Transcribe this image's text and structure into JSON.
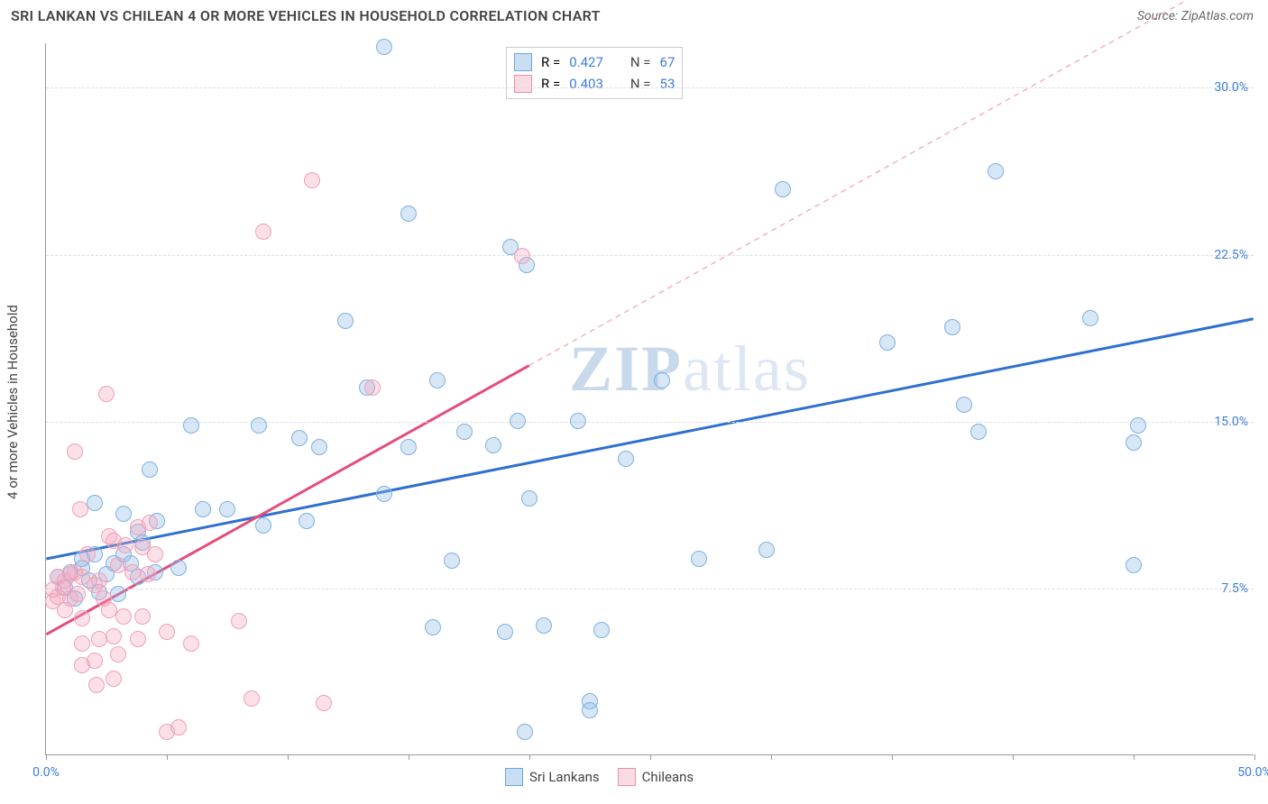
{
  "title": "SRI LANKAN VS CHILEAN 4 OR MORE VEHICLES IN HOUSEHOLD CORRELATION CHART",
  "source_label": "Source: ZipAtlas.com",
  "y_axis_title": "4 or more Vehicles in Household",
  "chart": {
    "type": "scatter",
    "xlim": [
      0,
      50
    ],
    "ylim": [
      0,
      32
    ],
    "x_ticks": [
      0,
      5,
      10,
      15,
      20,
      25,
      30,
      35,
      40,
      45,
      50
    ],
    "x_tick_labels": {
      "0": "0.0%",
      "50": "50.0%"
    },
    "y_gridlines": [
      7.5,
      15.0,
      22.5,
      30.0
    ],
    "y_tick_labels": [
      "7.5%",
      "15.0%",
      "22.5%",
      "30.0%"
    ],
    "background_color": "#ffffff",
    "grid_color": "#dddddd",
    "axis_color": "#999999",
    "marker_radius": 9,
    "marker_border_width": 1.5,
    "series": [
      {
        "name": "Sri Lankans",
        "fill": "rgba(140,185,230,0.35)",
        "stroke": "#7fb0e0",
        "trend": {
          "x1": 0,
          "y1": 8.8,
          "x2": 50,
          "y2": 19.6,
          "color": "#2f6fd0",
          "width": 3,
          "dash": "none",
          "extrapolate": false
        },
        "points": [
          [
            0.5,
            8.0
          ],
          [
            0.8,
            7.5
          ],
          [
            1.0,
            8.2
          ],
          [
            1.2,
            7.0
          ],
          [
            1.5,
            8.4
          ],
          [
            1.5,
            8.8
          ],
          [
            1.8,
            7.8
          ],
          [
            2.0,
            11.3
          ],
          [
            2.0,
            9.0
          ],
          [
            2.2,
            7.3
          ],
          [
            2.5,
            8.1
          ],
          [
            2.8,
            8.6
          ],
          [
            3.0,
            7.2
          ],
          [
            3.2,
            10.8
          ],
          [
            3.2,
            9.0
          ],
          [
            3.5,
            8.6
          ],
          [
            3.8,
            10.0
          ],
          [
            3.8,
            8.0
          ],
          [
            4.0,
            9.5
          ],
          [
            4.3,
            12.8
          ],
          [
            4.6,
            10.5
          ],
          [
            4.5,
            8.2
          ],
          [
            5.5,
            8.4
          ],
          [
            6.0,
            14.8
          ],
          [
            6.5,
            11.0
          ],
          [
            7.5,
            11.0
          ],
          [
            8.8,
            14.8
          ],
          [
            9.0,
            10.3
          ],
          [
            10.5,
            14.2
          ],
          [
            10.8,
            10.5
          ],
          [
            11.3,
            13.8
          ],
          [
            12.4,
            19.5
          ],
          [
            13.3,
            16.5
          ],
          [
            14.0,
            11.7
          ],
          [
            14.0,
            31.8
          ],
          [
            15.0,
            13.8
          ],
          [
            15.0,
            24.3
          ],
          [
            16.2,
            16.8
          ],
          [
            16.0,
            5.7
          ],
          [
            16.8,
            8.7
          ],
          [
            17.3,
            14.5
          ],
          [
            18.5,
            13.9
          ],
          [
            19.0,
            5.5
          ],
          [
            19.2,
            22.8
          ],
          [
            19.5,
            15.0
          ],
          [
            19.9,
            22.0
          ],
          [
            19.8,
            1.0
          ],
          [
            20.0,
            11.5
          ],
          [
            20.6,
            5.8
          ],
          [
            22.0,
            15.0
          ],
          [
            22.5,
            2.4
          ],
          [
            22.5,
            2.0
          ],
          [
            23.0,
            5.6
          ],
          [
            24.0,
            13.3
          ],
          [
            25.5,
            16.8
          ],
          [
            27.0,
            8.8
          ],
          [
            29.8,
            9.2
          ],
          [
            30.5,
            25.4
          ],
          [
            34.8,
            18.5
          ],
          [
            37.5,
            19.2
          ],
          [
            38.0,
            15.7
          ],
          [
            38.6,
            14.5
          ],
          [
            39.3,
            26.2
          ],
          [
            43.2,
            19.6
          ],
          [
            45.0,
            14.0
          ],
          [
            45.2,
            14.8
          ],
          [
            45.0,
            8.5
          ]
        ]
      },
      {
        "name": "Chileans",
        "fill": "rgba(245,165,190,0.35)",
        "stroke": "#efa0b8",
        "trend": {
          "x1": 0,
          "y1": 5.4,
          "x2": 20,
          "y2": 17.5,
          "color": "#e44d7a",
          "width": 3,
          "dash": "none",
          "extrapolate": true,
          "ex_x2": 50,
          "ex_y2": 35.6,
          "ex_dash": "6,5",
          "ex_width": 1.3,
          "ex_color": "#f2a6bd"
        },
        "points": [
          [
            0.3,
            6.9
          ],
          [
            0.3,
            7.4
          ],
          [
            0.5,
            8.0
          ],
          [
            0.5,
            7.1
          ],
          [
            0.7,
            7.5
          ],
          [
            0.8,
            7.8
          ],
          [
            0.8,
            6.5
          ],
          [
            1.0,
            8.1
          ],
          [
            1.0,
            7.0
          ],
          [
            1.2,
            8.2
          ],
          [
            1.2,
            13.6
          ],
          [
            1.3,
            7.2
          ],
          [
            1.4,
            11.0
          ],
          [
            1.5,
            4.0
          ],
          [
            1.5,
            6.1
          ],
          [
            1.5,
            8.0
          ],
          [
            1.5,
            5.0
          ],
          [
            1.7,
            9.0
          ],
          [
            2.0,
            4.2
          ],
          [
            2.0,
            7.6
          ],
          [
            2.1,
            3.1
          ],
          [
            2.2,
            5.2
          ],
          [
            2.2,
            7.8
          ],
          [
            2.4,
            7.0
          ],
          [
            2.6,
            6.5
          ],
          [
            2.5,
            16.2
          ],
          [
            2.6,
            9.8
          ],
          [
            2.8,
            9.6
          ],
          [
            2.8,
            5.3
          ],
          [
            2.8,
            3.4
          ],
          [
            3.0,
            8.5
          ],
          [
            3.0,
            4.5
          ],
          [
            3.2,
            6.2
          ],
          [
            3.3,
            9.4
          ],
          [
            3.6,
            8.2
          ],
          [
            3.8,
            5.2
          ],
          [
            3.8,
            10.2
          ],
          [
            4.0,
            6.2
          ],
          [
            4.0,
            9.3
          ],
          [
            4.2,
            8.1
          ],
          [
            4.3,
            10.4
          ],
          [
            4.5,
            9.0
          ],
          [
            5.0,
            5.5
          ],
          [
            5.0,
            1.0
          ],
          [
            5.5,
            1.2
          ],
          [
            6.0,
            5.0
          ],
          [
            8.0,
            6.0
          ],
          [
            8.5,
            2.5
          ],
          [
            9.0,
            23.5
          ],
          [
            11.0,
            25.8
          ],
          [
            11.5,
            2.3
          ],
          [
            13.5,
            16.5
          ],
          [
            19.7,
            22.4
          ]
        ]
      }
    ]
  },
  "legend_top": {
    "rows": [
      {
        "swatch": "blue",
        "r_label": "R =",
        "r": "0.427",
        "n_label": "N =",
        "n": "67"
      },
      {
        "swatch": "pink",
        "r_label": "R =",
        "r": "0.403",
        "n_label": "N =",
        "n": "53"
      }
    ]
  },
  "legend_bottom": {
    "items": [
      {
        "swatch": "blue",
        "label": "Sri Lankans"
      },
      {
        "swatch": "pink",
        "label": "Chileans"
      }
    ]
  },
  "watermark": {
    "text_a": "ZIP",
    "text_b": "atlas"
  }
}
